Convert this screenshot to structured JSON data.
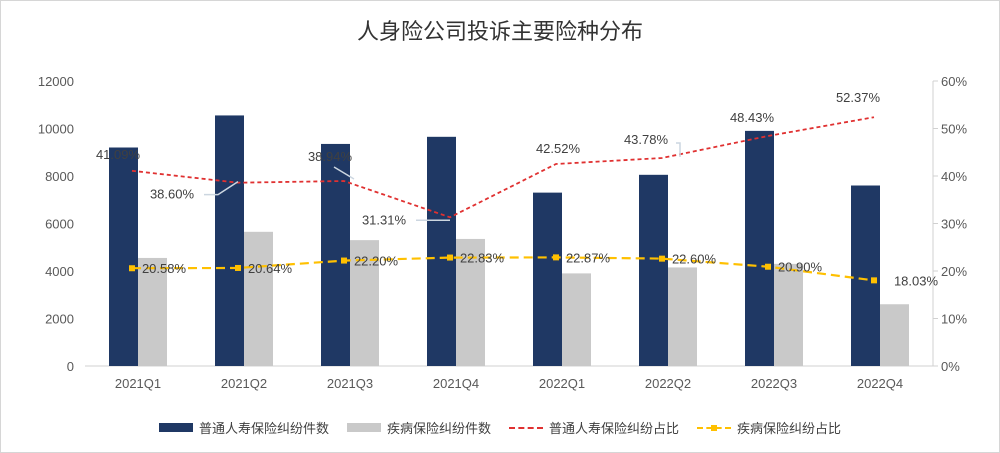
{
  "chart_data": {
    "type": "bar",
    "title": "人身险公司投诉主要险种分布",
    "categories": [
      "2021Q1",
      "2021Q2",
      "2021Q3",
      "2021Q4",
      "2022Q1",
      "2022Q2",
      "2022Q3",
      "2022Q4"
    ],
    "y_left": {
      "ylim": [
        0,
        12000
      ],
      "ticks": [
        "0",
        "2000",
        "4000",
        "6000",
        "8000",
        "10000",
        "12000"
      ]
    },
    "y_right": {
      "ylim": [
        0,
        60
      ],
      "ticks": [
        "0%",
        "10%",
        "20%",
        "30%",
        "40%",
        "50%",
        "60%"
      ]
    },
    "series": [
      {
        "name": "普通人寿保险纠纷件数",
        "kind": "bar",
        "axis": "left",
        "color": "#1f3864",
        "values": [
          9200,
          10550,
          9350,
          9650,
          7300,
          8050,
          9900,
          7600
        ]
      },
      {
        "name": "疾病保险纠纷件数",
        "kind": "bar",
        "axis": "left",
        "color": "#c9c9c9",
        "values": [
          4550,
          5650,
          5300,
          5350,
          3900,
          4150,
          4300,
          2600
        ]
      },
      {
        "name": "普通人寿保险纠纷占比",
        "kind": "line",
        "axis": "right",
        "color": "#e03131",
        "marker": "none",
        "values": [
          41.09,
          38.6,
          38.94,
          31.31,
          42.52,
          43.78,
          48.43,
          52.37
        ],
        "labels": [
          "41.09%",
          "38.60%",
          "38.94%",
          "31.31%",
          "42.52%",
          "43.78%",
          "48.43%",
          "52.37%"
        ]
      },
      {
        "name": "疾病保险纠纷占比",
        "kind": "line",
        "axis": "right",
        "color": "#ffc000",
        "marker": "square",
        "values": [
          20.58,
          20.64,
          22.2,
          22.83,
          22.87,
          22.6,
          20.9,
          18.03
        ],
        "labels": [
          "20.58%",
          "20.64%",
          "22.20%",
          "22.83%",
          "22.87%",
          "22.60%",
          "20.90%",
          "18.03%"
        ]
      }
    ],
    "grid": false,
    "legend": "bottom"
  }
}
